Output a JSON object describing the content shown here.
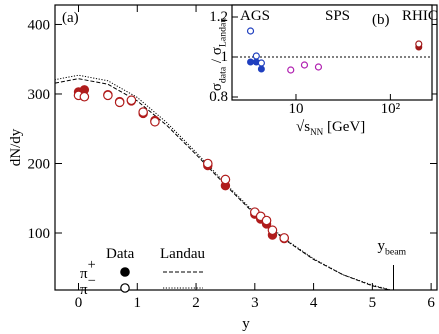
{
  "chart_data": [
    {
      "type": "scatter",
      "annotation": "(a)",
      "x_label": "y",
      "y_label": "dN/dy",
      "xlim": [
        -0.4,
        6.1
      ],
      "ylim": [
        18,
        428
      ],
      "xticks": [
        0,
        1,
        2,
        3,
        4,
        5,
        6
      ],
      "yticks": [
        100,
        200,
        300,
        400
      ],
      "legend_headers": [
        "Data",
        "Landau"
      ],
      "series": [
        {
          "name": "π",
          "name_sup": "+",
          "marker": "filled",
          "color": "#b01c1c",
          "x": [
            0.0,
            0.1,
            0.5,
            0.7,
            0.9,
            1.1,
            1.3,
            2.2,
            2.5,
            3.0,
            3.1,
            3.2,
            3.3,
            3.5
          ],
          "values": [
            303,
            306,
            299,
            289,
            290,
            272,
            262,
            197,
            168,
            127,
            120,
            113,
            97,
            92
          ]
        },
        {
          "name": "π",
          "name_sup": "−",
          "marker": "open",
          "color": "#b01c1c",
          "x": [
            0.0,
            0.1,
            0.5,
            0.7,
            0.9,
            1.1,
            1.3,
            2.2,
            2.5,
            3.0,
            3.1,
            3.2,
            3.3,
            3.5
          ],
          "values": [
            298,
            296,
            298,
            288,
            291,
            274,
            260,
            200,
            177,
            130,
            124,
            118,
            104,
            93
          ]
        }
      ],
      "model_series": [
        {
          "style": "dashed",
          "x": [
            -0.5,
            0,
            0.5,
            1,
            1.5,
            2,
            2.5,
            3,
            3.5,
            4,
            4.5,
            5,
            5.5,
            6
          ],
          "values": [
            314,
            322,
            314,
            290,
            255,
            213,
            169,
            127,
            91,
            62,
            40,
            24,
            14,
            8
          ]
        },
        {
          "style": "dotted",
          "x": [
            -0.5,
            0,
            0.5,
            1,
            1.5,
            2,
            2.5,
            3,
            3.5,
            4,
            4.5,
            5,
            5.5,
            6
          ],
          "values": [
            319,
            327,
            319,
            295,
            259,
            216,
            171,
            129,
            92,
            63,
            40,
            25,
            14,
            8
          ]
        }
      ],
      "beam": {
        "text": "y",
        "sub": "beam",
        "x": 5.36
      }
    },
    {
      "type": "scatter",
      "annotation": "(b)",
      "xlog": true,
      "x_label": [
        "√s",
        "NN",
        " [GeV]"
      ],
      "y_label": [
        "σ",
        "data",
        " / σ",
        "Landau"
      ],
      "xlim": [
        2.1,
        276
      ],
      "ylim": [
        0.785,
        1.26
      ],
      "xticks": [
        {
          "value": 10,
          "label": "10"
        },
        {
          "value": 100,
          "label": "10²"
        }
      ],
      "yticks": [
        0.8,
        1,
        1.2
      ],
      "reference_line": 1,
      "labels": [
        {
          "text": "AGS",
          "color": "#1f3fbf"
        },
        {
          "text": "SPS",
          "color": "#b020b0"
        },
        {
          "text": "RHIC",
          "color": "#a01818"
        }
      ],
      "series": [
        {
          "marker": "filled",
          "color": "#1f3fbf",
          "x": [
            3.3,
            3.8,
            4.3
          ],
          "values": [
            0.975,
            0.975,
            0.94
          ]
        },
        {
          "marker": "open",
          "color": "#1f3fbf",
          "x": [
            3.3,
            3.8,
            4.3
          ],
          "values": [
            1.13,
            1.005,
            0.97
          ]
        },
        {
          "marker": "open",
          "color": "#b020b0",
          "x": [
            8.8,
            12.3,
            17.3
          ],
          "values": [
            0.935,
            0.96,
            0.95
          ]
        },
        {
          "marker": "filled",
          "color": "#a01818",
          "x": [
            200
          ],
          "values": [
            1.05
          ]
        },
        {
          "marker": "open",
          "color": "#a01818",
          "x": [
            200
          ],
          "values": [
            1.065
          ]
        }
      ]
    }
  ]
}
